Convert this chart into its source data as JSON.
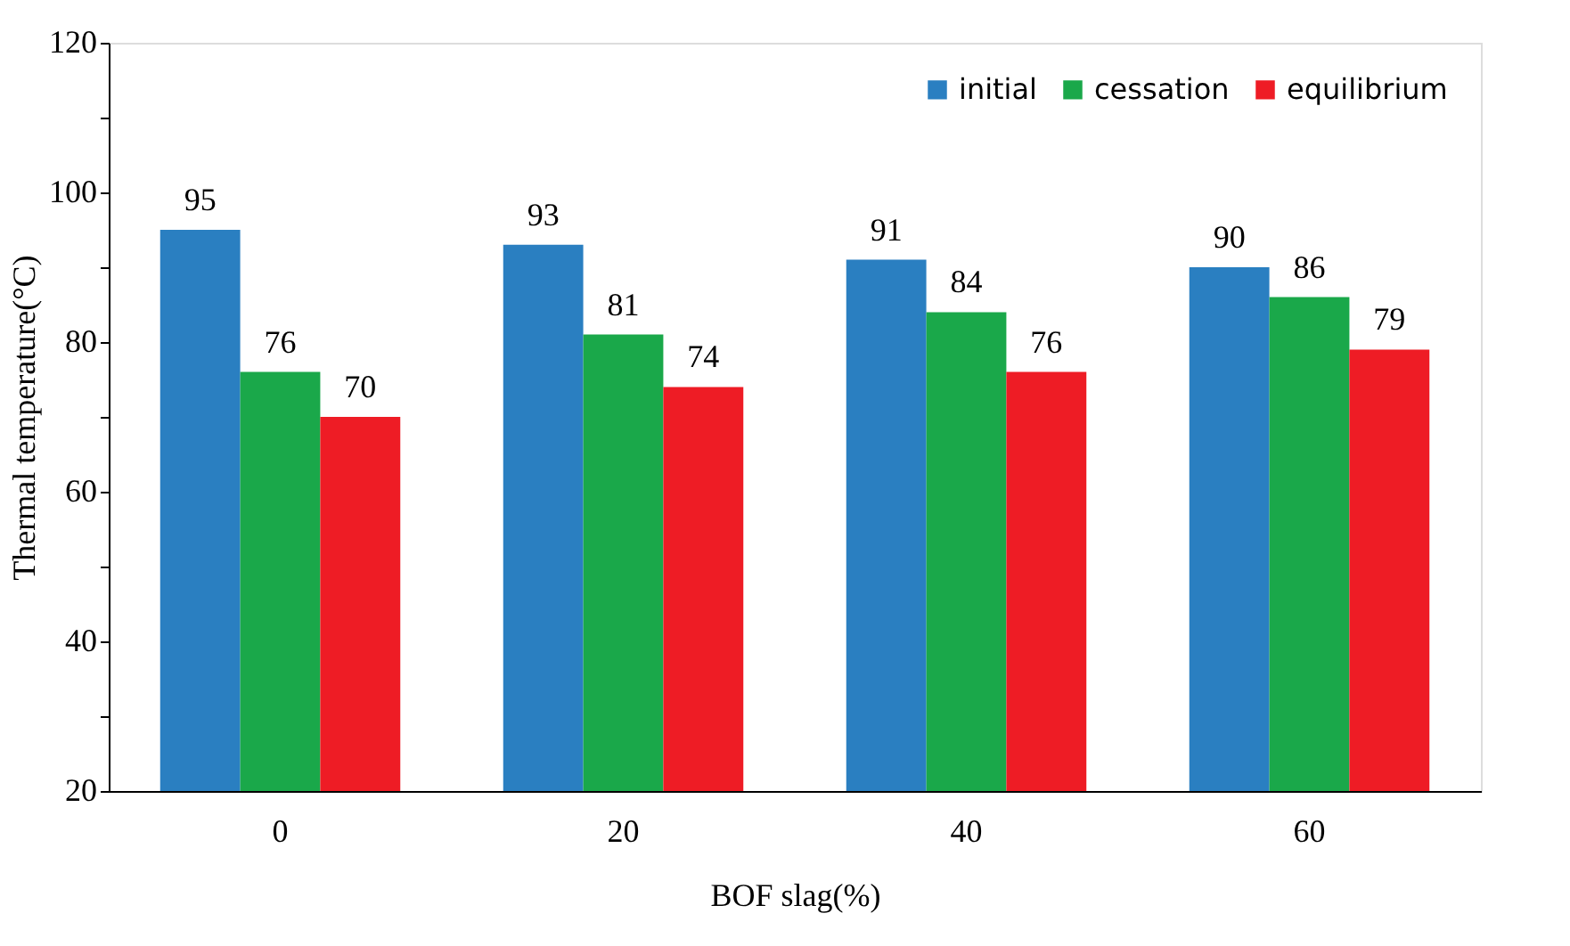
{
  "chart_data": {
    "type": "bar",
    "xlabel": "BOF slag(%)",
    "ylabel": "Thermal temperature(°C)",
    "categories": [
      "0",
      "20",
      "40",
      "60"
    ],
    "series": [
      {
        "name": "initial",
        "color": "#2a7fc1",
        "values": [
          95,
          93,
          91,
          90
        ]
      },
      {
        "name": "cessation",
        "color": "#1aa84a",
        "values": [
          76,
          81,
          84,
          86
        ]
      },
      {
        "name": "equilibrium",
        "color": "#ee1c25",
        "values": [
          70,
          74,
          76,
          79
        ]
      }
    ],
    "ylim": [
      20,
      120
    ],
    "yticks": [
      20,
      {
        "value": 30,
        "label": null
      },
      40,
      {
        "value": 50,
        "label": null
      },
      60,
      {
        "value": 70,
        "label": null
      },
      80,
      {
        "value": 90,
        "label": null
      },
      100,
      {
        "value": 110,
        "label": null
      },
      120
    ],
    "data_labels": true,
    "grid": false,
    "legend": "top right"
  }
}
